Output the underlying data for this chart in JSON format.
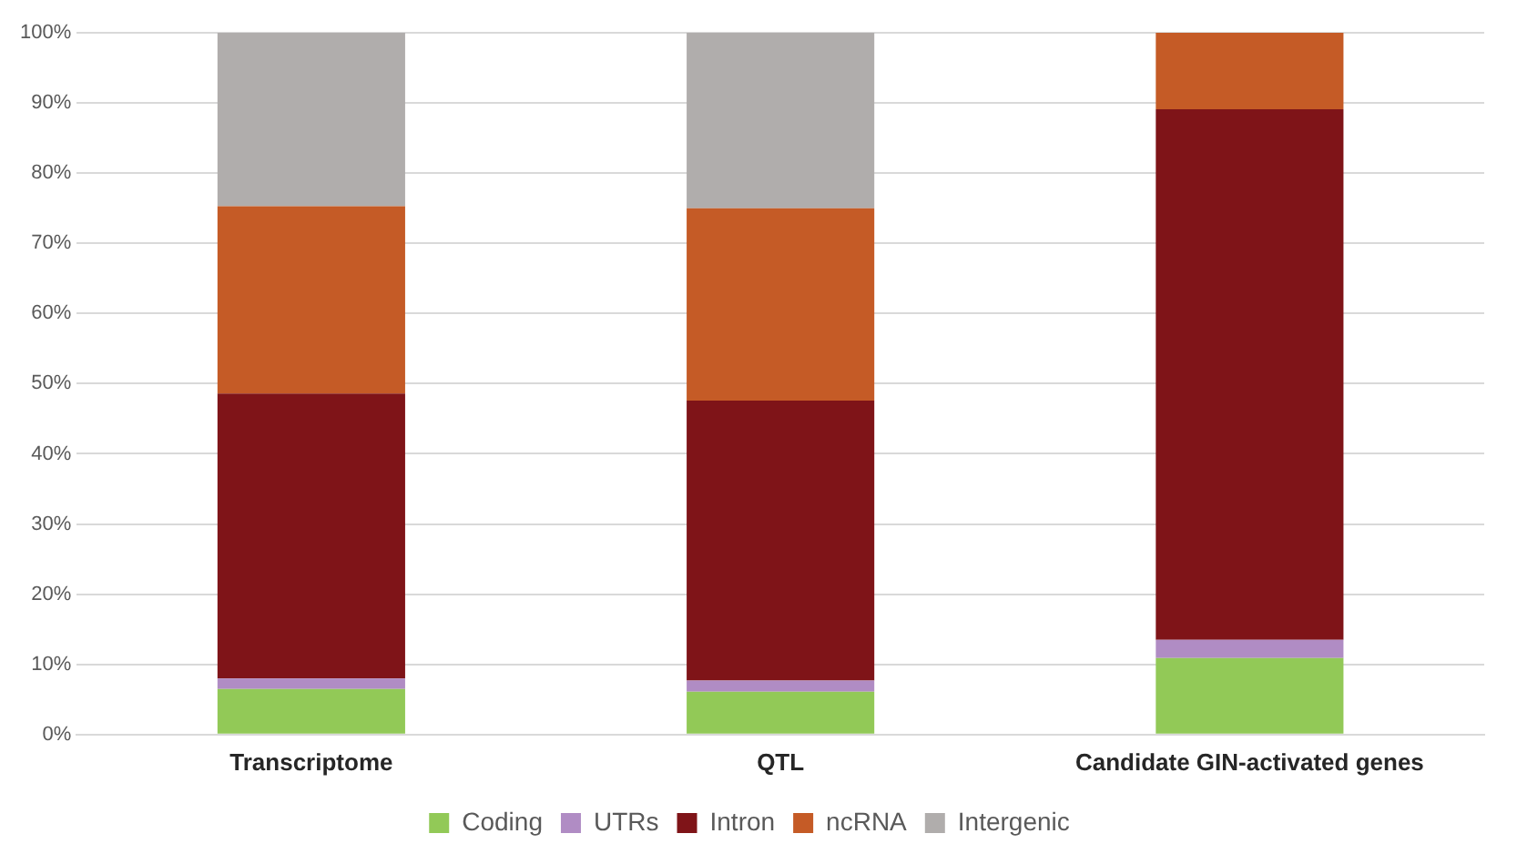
{
  "chart_data": {
    "type": "bar",
    "stacked": true,
    "categories": [
      "Transcriptome",
      "QTL",
      "Candidate GIN-activated genes"
    ],
    "series": [
      {
        "name": "Coding",
        "color": "#92c957",
        "values": [
          6.5,
          6.1,
          10.9
        ]
      },
      {
        "name": "UTRs",
        "color": "#b08cc4",
        "values": [
          1.5,
          1.6,
          2.6
        ]
      },
      {
        "name": "Intron",
        "color": "#7f1418",
        "values": [
          40.6,
          39.9,
          75.6
        ]
      },
      {
        "name": "ncRNA",
        "color": "#c55b26",
        "values": [
          26.7,
          27.4,
          10.9
        ]
      },
      {
        "name": "Intergenic",
        "color": "#b0adac",
        "values": [
          24.7,
          25.0,
          0
        ]
      }
    ],
    "ylim": [
      0,
      100
    ],
    "yticks": [
      {
        "value": 0,
        "label": "0%"
      },
      {
        "value": 10,
        "label": "10%"
      },
      {
        "value": 20,
        "label": "20%"
      },
      {
        "value": 30,
        "label": "30%"
      },
      {
        "value": 40,
        "label": "40%"
      },
      {
        "value": 50,
        "label": "50%"
      },
      {
        "value": 60,
        "label": "60%"
      },
      {
        "value": 70,
        "label": "70%"
      },
      {
        "value": 80,
        "label": "80%"
      },
      {
        "value": 90,
        "label": "90%"
      },
      {
        "value": 100,
        "label": "100%"
      }
    ],
    "grid": "y",
    "legend": "bottom"
  }
}
